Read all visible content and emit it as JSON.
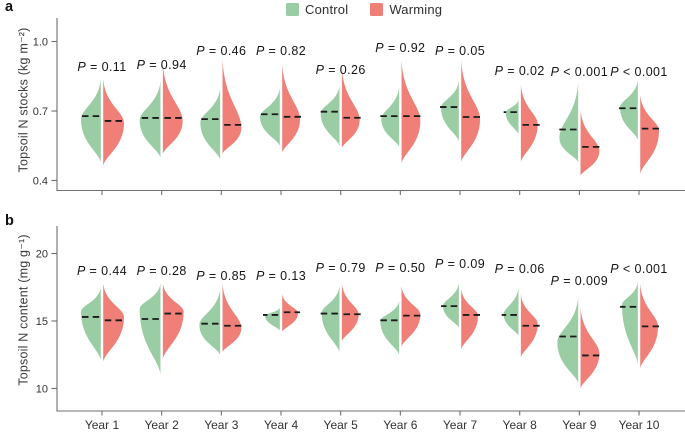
{
  "figure": {
    "panels": {
      "a": "a",
      "b": "b"
    },
    "legend": [
      {
        "label": "Control",
        "color": "#9ACDA4"
      },
      {
        "label": "Warming",
        "color": "#F07F78"
      }
    ]
  },
  "chart_data": [
    {
      "panel": "a",
      "type": "violin",
      "split": true,
      "title": "",
      "ylabel": "Topsoil N stocks (kg m⁻²)",
      "yticks": [
        0.4,
        0.7,
        1.0
      ],
      "ytick_labels": [
        "0.4",
        "0.7",
        "1.0"
      ],
      "ylim": [
        0.35,
        1.05
      ],
      "grid": false,
      "legend_position": "top-center",
      "show_x_labels": false,
      "categories": [
        "Year 1",
        "Year 2",
        "Year 3",
        "Year 4",
        "Year 5",
        "Year 6",
        "Year 7",
        "Year 8",
        "Year 9",
        "Year 10"
      ],
      "p_values": [
        "P = 0.11",
        "P = 0.94",
        "P = 0.46",
        "P = 0.82",
        "P = 0.26",
        "P = 0.92",
        "P = 0.05",
        "P = 0.02",
        "P < 0.001",
        "P < 0.001"
      ],
      "p_label_y": [
        71,
        69,
        55,
        55,
        74,
        52,
        55,
        75,
        76,
        76
      ],
      "series": [
        {
          "name": "Control",
          "side": "left",
          "color": "#9ACDA4",
          "stats": [
            {
              "min": 0.48,
              "max": 0.84,
              "median": 0.678,
              "mode": 0.665,
              "w": 21
            },
            {
              "min": 0.5,
              "max": 0.83,
              "median": 0.67,
              "mode": 0.66,
              "w": 22
            },
            {
              "min": 0.49,
              "max": 0.8,
              "median": 0.665,
              "mode": 0.65,
              "w": 21
            },
            {
              "min": 0.55,
              "max": 0.8,
              "median": 0.686,
              "mode": 0.675,
              "w": 21
            },
            {
              "min": 0.55,
              "max": 0.81,
              "median": 0.697,
              "mode": 0.69,
              "w": 20
            },
            {
              "min": 0.545,
              "max": 0.805,
              "median": 0.678,
              "mode": 0.665,
              "w": 19
            },
            {
              "min": 0.57,
              "max": 0.83,
              "median": 0.717,
              "mode": 0.715,
              "w": 19
            },
            {
              "min": 0.6,
              "max": 0.75,
              "median": 0.695,
              "mode": 0.695,
              "w": 14
            },
            {
              "min": 0.48,
              "max": 0.825,
              "median": 0.62,
              "mode": 0.585,
              "w": 20
            },
            {
              "min": 0.575,
              "max": 0.835,
              "median": 0.712,
              "mode": 0.715,
              "w": 19
            }
          ]
        },
        {
          "name": "Warming",
          "side": "right",
          "color": "#F07F78",
          "stats": [
            {
              "min": 0.465,
              "max": 0.84,
              "median": 0.657,
              "mode": 0.648,
              "w": 22
            },
            {
              "min": 0.515,
              "max": 0.905,
              "median": 0.67,
              "mode": 0.658,
              "w": 21
            },
            {
              "min": 0.515,
              "max": 0.925,
              "median": 0.64,
              "mode": 0.628,
              "w": 20
            },
            {
              "min": 0.52,
              "max": 0.905,
              "median": 0.675,
              "mode": 0.665,
              "w": 19
            },
            {
              "min": 0.54,
              "max": 0.885,
              "median": 0.671,
              "mode": 0.662,
              "w": 19
            },
            {
              "min": 0.475,
              "max": 0.92,
              "median": 0.678,
              "mode": 0.658,
              "w": 20
            },
            {
              "min": 0.48,
              "max": 0.92,
              "median": 0.674,
              "mode": 0.665,
              "w": 20
            },
            {
              "min": 0.48,
              "max": 0.815,
              "median": 0.64,
              "mode": 0.643,
              "w": 18
            },
            {
              "min": 0.42,
              "max": 0.705,
              "median": 0.545,
              "mode": 0.528,
              "w": 20
            },
            {
              "min": 0.43,
              "max": 0.77,
              "median": 0.624,
              "mode": 0.615,
              "w": 20
            }
          ]
        }
      ]
    },
    {
      "panel": "b",
      "type": "violin",
      "split": true,
      "title": "",
      "ylabel": "Topsoil N content (mg g⁻¹)",
      "yticks": [
        10,
        15,
        20
      ],
      "ytick_labels": [
        "10",
        "15",
        "20"
      ],
      "ylim": [
        8.5,
        22
      ],
      "grid": false,
      "legend_position": "top-center",
      "show_x_labels": true,
      "categories": [
        "Year 1",
        "Year 2",
        "Year 3",
        "Year 4",
        "Year 5",
        "Year 6",
        "Year 7",
        "Year 8",
        "Year 9",
        "Year 10"
      ],
      "p_values": [
        "P = 0.44",
        "P = 0.28",
        "P = 0.85",
        "P = 0.13",
        "P = 0.79",
        "P = 0.50",
        "P = 0.09",
        "P = 0.06",
        "P = 0.009",
        "P < 0.001"
      ],
      "p_label_y": [
        275,
        275,
        280,
        280,
        272,
        272,
        268,
        273,
        285,
        273
      ],
      "series": [
        {
          "name": "Control",
          "side": "left",
          "color": "#9ACDA4",
          "stats": [
            {
              "min": 12.1,
              "max": 17.5,
              "median": 15.3,
              "mode": 15.7,
              "w": 21
            },
            {
              "min": 11.1,
              "max": 17.8,
              "median": 15.15,
              "mode": 15.9,
              "w": 22
            },
            {
              "min": 12.5,
              "max": 17.4,
              "median": 14.8,
              "mode": 14.7,
              "w": 22
            },
            {
              "min": 14.3,
              "max": 16.0,
              "median": 15.45,
              "mode": 15.4,
              "w": 16
            },
            {
              "min": 12.7,
              "max": 17.6,
              "median": 15.55,
              "mode": 15.6,
              "w": 19
            },
            {
              "min": 12.5,
              "max": 16.5,
              "median": 15.05,
              "mode": 15.0,
              "w": 20
            },
            {
              "min": 14.5,
              "max": 17.85,
              "median": 16.1,
              "mode": 16.1,
              "w": 17
            },
            {
              "min": 13.9,
              "max": 17.5,
              "median": 15.45,
              "mode": 15.5,
              "w": 16
            },
            {
              "min": 10.4,
              "max": 16.8,
              "median": 13.85,
              "mode": 13.4,
              "w": 22
            },
            {
              "min": 11.8,
              "max": 17.9,
              "median": 16.05,
              "mode": 16.2,
              "w": 17
            }
          ]
        },
        {
          "name": "Warming",
          "side": "right",
          "color": "#F07F78",
          "stats": [
            {
              "min": 12.0,
              "max": 17.8,
              "median": 15.05,
              "mode": 15.3,
              "w": 22
            },
            {
              "min": 12.2,
              "max": 17.8,
              "median": 15.55,
              "mode": 15.7,
              "w": 22
            },
            {
              "min": 12.7,
              "max": 17.8,
              "median": 14.65,
              "mode": 14.5,
              "w": 20
            },
            {
              "min": 14.2,
              "max": 17.0,
              "median": 15.65,
              "mode": 15.6,
              "w": 17
            },
            {
              "min": 13.5,
              "max": 17.8,
              "median": 15.5,
              "mode": 15.5,
              "w": 18
            },
            {
              "min": 13.1,
              "max": 17.6,
              "median": 15.4,
              "mode": 15.5,
              "w": 20
            },
            {
              "min": 12.9,
              "max": 17.4,
              "median": 15.45,
              "mode": 15.4,
              "w": 18
            },
            {
              "min": 12.3,
              "max": 17.0,
              "median": 14.65,
              "mode": 14.8,
              "w": 18
            },
            {
              "min": 10.0,
              "max": 16.0,
              "median": 12.45,
              "mode": 12.6,
              "w": 20
            },
            {
              "min": 11.5,
              "max": 17.8,
              "median": 14.6,
              "mode": 14.6,
              "w": 19
            }
          ]
        }
      ]
    }
  ]
}
